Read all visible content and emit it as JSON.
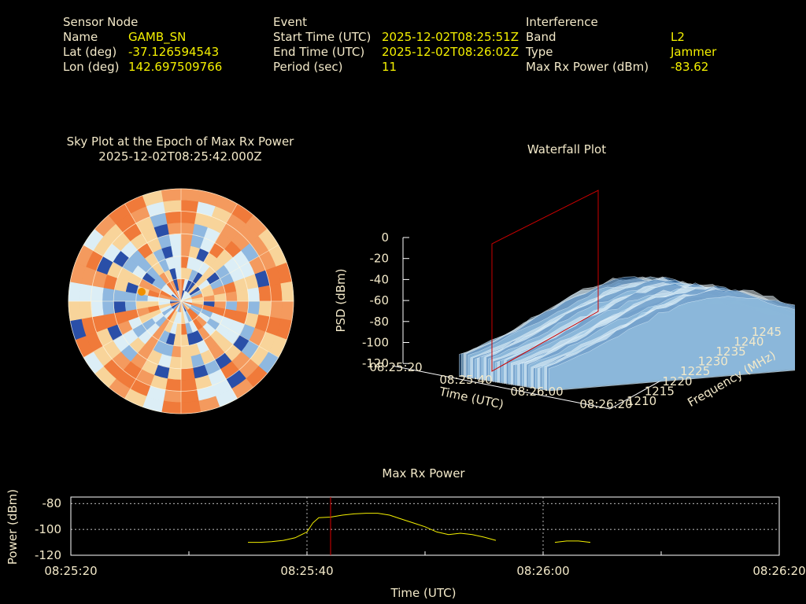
{
  "header": {
    "sensor": {
      "title": "Sensor Node",
      "name_label": "Name",
      "name": "GAMB_SN",
      "lat_label": "Lat (deg)",
      "lat": "-37.126594543",
      "lon_label": "Lon (deg)",
      "lon": "142.697509766"
    },
    "event": {
      "title": "Event",
      "start_label": "Start Time (UTC)",
      "start": "2025-12-02T08:25:51Z",
      "end_label": "End Time (UTC)",
      "end": "2025-12-02T08:26:02Z",
      "period_label": "Period (sec)",
      "period": "11"
    },
    "interference": {
      "title": "Interference",
      "band_label": "Band",
      "band": "L2",
      "type_label": "Type",
      "type": "Jammer",
      "maxrx_label": "Max Rx Power (dBm)",
      "maxrx": "-83.62"
    }
  },
  "chart_data": [
    {
      "type": "heatmap",
      "title": "Sky Plot at the Epoch of Max Rx Power",
      "subtitle": "2025-12-02T08:25:42.000Z",
      "projection": "polar",
      "rings": 10,
      "sectors": 36,
      "colormap": [
        "#2a4fa8",
        "#8fb8e0",
        "#dceef6",
        "#f8d49a",
        "#f49a5e",
        "#f07a3a"
      ],
      "hotspot_color": "#f09000"
    },
    {
      "type": "area",
      "title": "Waterfall Plot",
      "zlabel": "PSD (dBm)",
      "xlabel": "Time (UTC)",
      "ylabel": "Frequency (MHz)",
      "z_ticks": [
        "0",
        "-20",
        "-40",
        "-60",
        "-80",
        "-100",
        "-120"
      ],
      "zlim": [
        -120,
        0
      ],
      "x_ticks": [
        "08:25:20",
        "08:25:40",
        "08:26:00",
        "08:26:20"
      ],
      "y_ticks": [
        "1210",
        "1215",
        "1220",
        "1225",
        "1230",
        "1235",
        "1240",
        "1245"
      ],
      "marker_time": "08:25:42",
      "marker_color": "#cc0000",
      "surface_colors": [
        "#3c78b4",
        "#9cc8e6",
        "#e6f2f8"
      ]
    },
    {
      "type": "line",
      "title": "Max Rx Power",
      "xlabel": "Time (UTC)",
      "ylabel": "Power (dBm)",
      "x_ticks": [
        "08:25:20",
        "08:25:40",
        "08:26:00",
        "08:26:20"
      ],
      "y_ticks": [
        "-80",
        "-100",
        "-120"
      ],
      "ylim": [
        -120,
        -75
      ],
      "xlim_sec": [
        0,
        60
      ],
      "grid": true,
      "line_color": "#f4f000",
      "marker_sec": 22,
      "marker_color": "#dd0000",
      "segments": [
        [
          [
            15,
            -110
          ],
          [
            16,
            -110
          ],
          [
            17,
            -109.5
          ],
          [
            18,
            -108.5
          ],
          [
            19,
            -106.5
          ],
          [
            20,
            -102
          ],
          [
            20.5,
            -95
          ],
          [
            21,
            -91
          ],
          [
            22,
            -90.5
          ],
          [
            23,
            -89
          ],
          [
            24,
            -88
          ],
          [
            25,
            -87.5
          ],
          [
            26,
            -87.5
          ],
          [
            27,
            -89
          ],
          [
            28,
            -92
          ],
          [
            29,
            -95
          ],
          [
            30,
            -98
          ],
          [
            31,
            -102
          ],
          [
            32,
            -104
          ],
          [
            33,
            -103
          ],
          [
            34,
            -104
          ],
          [
            35,
            -106
          ],
          [
            36,
            -108.5
          ]
        ],
        [
          [
            41,
            -110
          ],
          [
            42,
            -109
          ],
          [
            43,
            -109
          ],
          [
            44,
            -110
          ]
        ]
      ]
    }
  ]
}
